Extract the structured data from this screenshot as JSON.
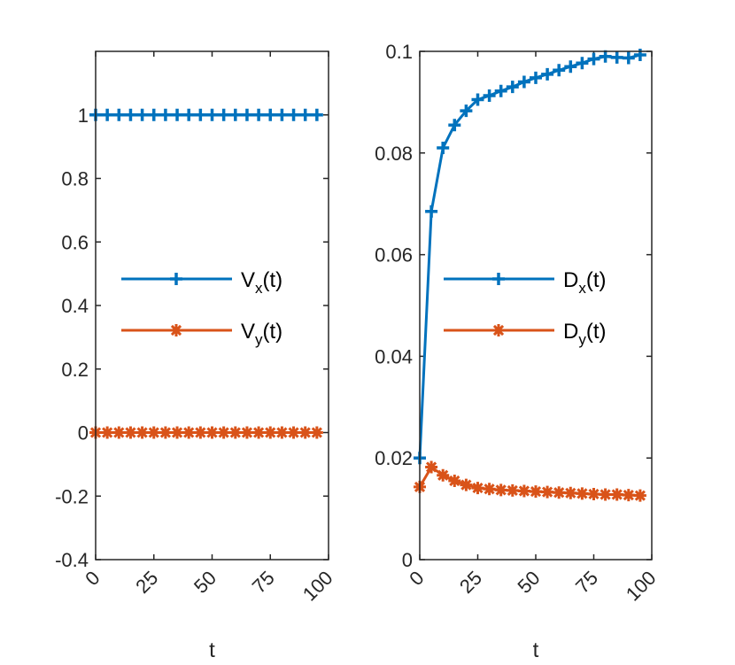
{
  "colors": {
    "series1": "#0072BD",
    "series2": "#D95319",
    "axis": "#262626"
  },
  "chart_data": [
    {
      "type": "line",
      "xlabel": "t",
      "ylabel": "",
      "xlim": [
        0,
        100
      ],
      "ylim": [
        -0.4,
        1.2
      ],
      "xticks": [
        "0",
        "25",
        "50",
        "75",
        "100"
      ],
      "xtick_values": [
        0,
        25,
        50,
        75,
        100
      ],
      "yticks": [
        "-0.4",
        "-0.2",
        "0",
        "0.2",
        "0.4",
        "0.6",
        "0.8",
        "1"
      ],
      "ytick_values": [
        -0.4,
        -0.2,
        0,
        0.2,
        0.4,
        0.6,
        0.8,
        1
      ],
      "legend": "center-right",
      "x": [
        0,
        5,
        10,
        15,
        20,
        25,
        30,
        35,
        40,
        45,
        50,
        55,
        60,
        65,
        70,
        75,
        80,
        85,
        90,
        95
      ],
      "series": [
        {
          "name": "V",
          "sub": "x",
          "suffix": "(t)",
          "marker": "plus",
          "values": [
            1,
            1,
            1,
            1,
            1,
            1,
            1,
            1,
            1,
            1,
            1,
            1,
            1,
            1,
            1,
            1,
            1,
            1,
            1,
            1
          ]
        },
        {
          "name": "V",
          "sub": "y",
          "suffix": "(t)",
          "marker": "asterisk",
          "values": [
            0,
            0,
            0,
            0,
            0,
            0,
            0,
            0,
            0,
            0,
            0,
            0,
            0,
            0,
            0,
            0,
            0,
            0,
            0,
            0
          ]
        }
      ]
    },
    {
      "type": "line",
      "xlabel": "t",
      "ylabel": "",
      "xlim": [
        0,
        100
      ],
      "ylim": [
        0,
        0.1
      ],
      "xticks": [
        "0",
        "25",
        "50",
        "75",
        "100"
      ],
      "xtick_values": [
        0,
        25,
        50,
        75,
        100
      ],
      "yticks": [
        "0",
        "0.02",
        "0.04",
        "0.06",
        "0.08",
        "0.1"
      ],
      "ytick_values": [
        0,
        0.02,
        0.04,
        0.06,
        0.08,
        0.1
      ],
      "legend": "center-right",
      "x": [
        0,
        5,
        10,
        15,
        20,
        25,
        30,
        35,
        40,
        45,
        50,
        55,
        60,
        65,
        70,
        75,
        80,
        85,
        90,
        95
      ],
      "series": [
        {
          "name": "D",
          "sub": "x",
          "suffix": "(t)",
          "marker": "plus",
          "values": [
            0.02,
            0.0685,
            0.081,
            0.0855,
            0.0883,
            0.0905,
            0.0913,
            0.0922,
            0.093,
            0.094,
            0.0948,
            0.0955,
            0.0963,
            0.097,
            0.0977,
            0.0985,
            0.099,
            0.0988,
            0.0987,
            0.0993
          ]
        },
        {
          "name": "D",
          "sub": "y",
          "suffix": "(t)",
          "marker": "asterisk",
          "values": [
            0.0143,
            0.0182,
            0.0166,
            0.0155,
            0.0147,
            0.0141,
            0.0139,
            0.0137,
            0.0136,
            0.0135,
            0.0134,
            0.0133,
            0.0132,
            0.0131,
            0.013,
            0.0129,
            0.0128,
            0.0128,
            0.0127,
            0.0126
          ]
        }
      ]
    }
  ]
}
